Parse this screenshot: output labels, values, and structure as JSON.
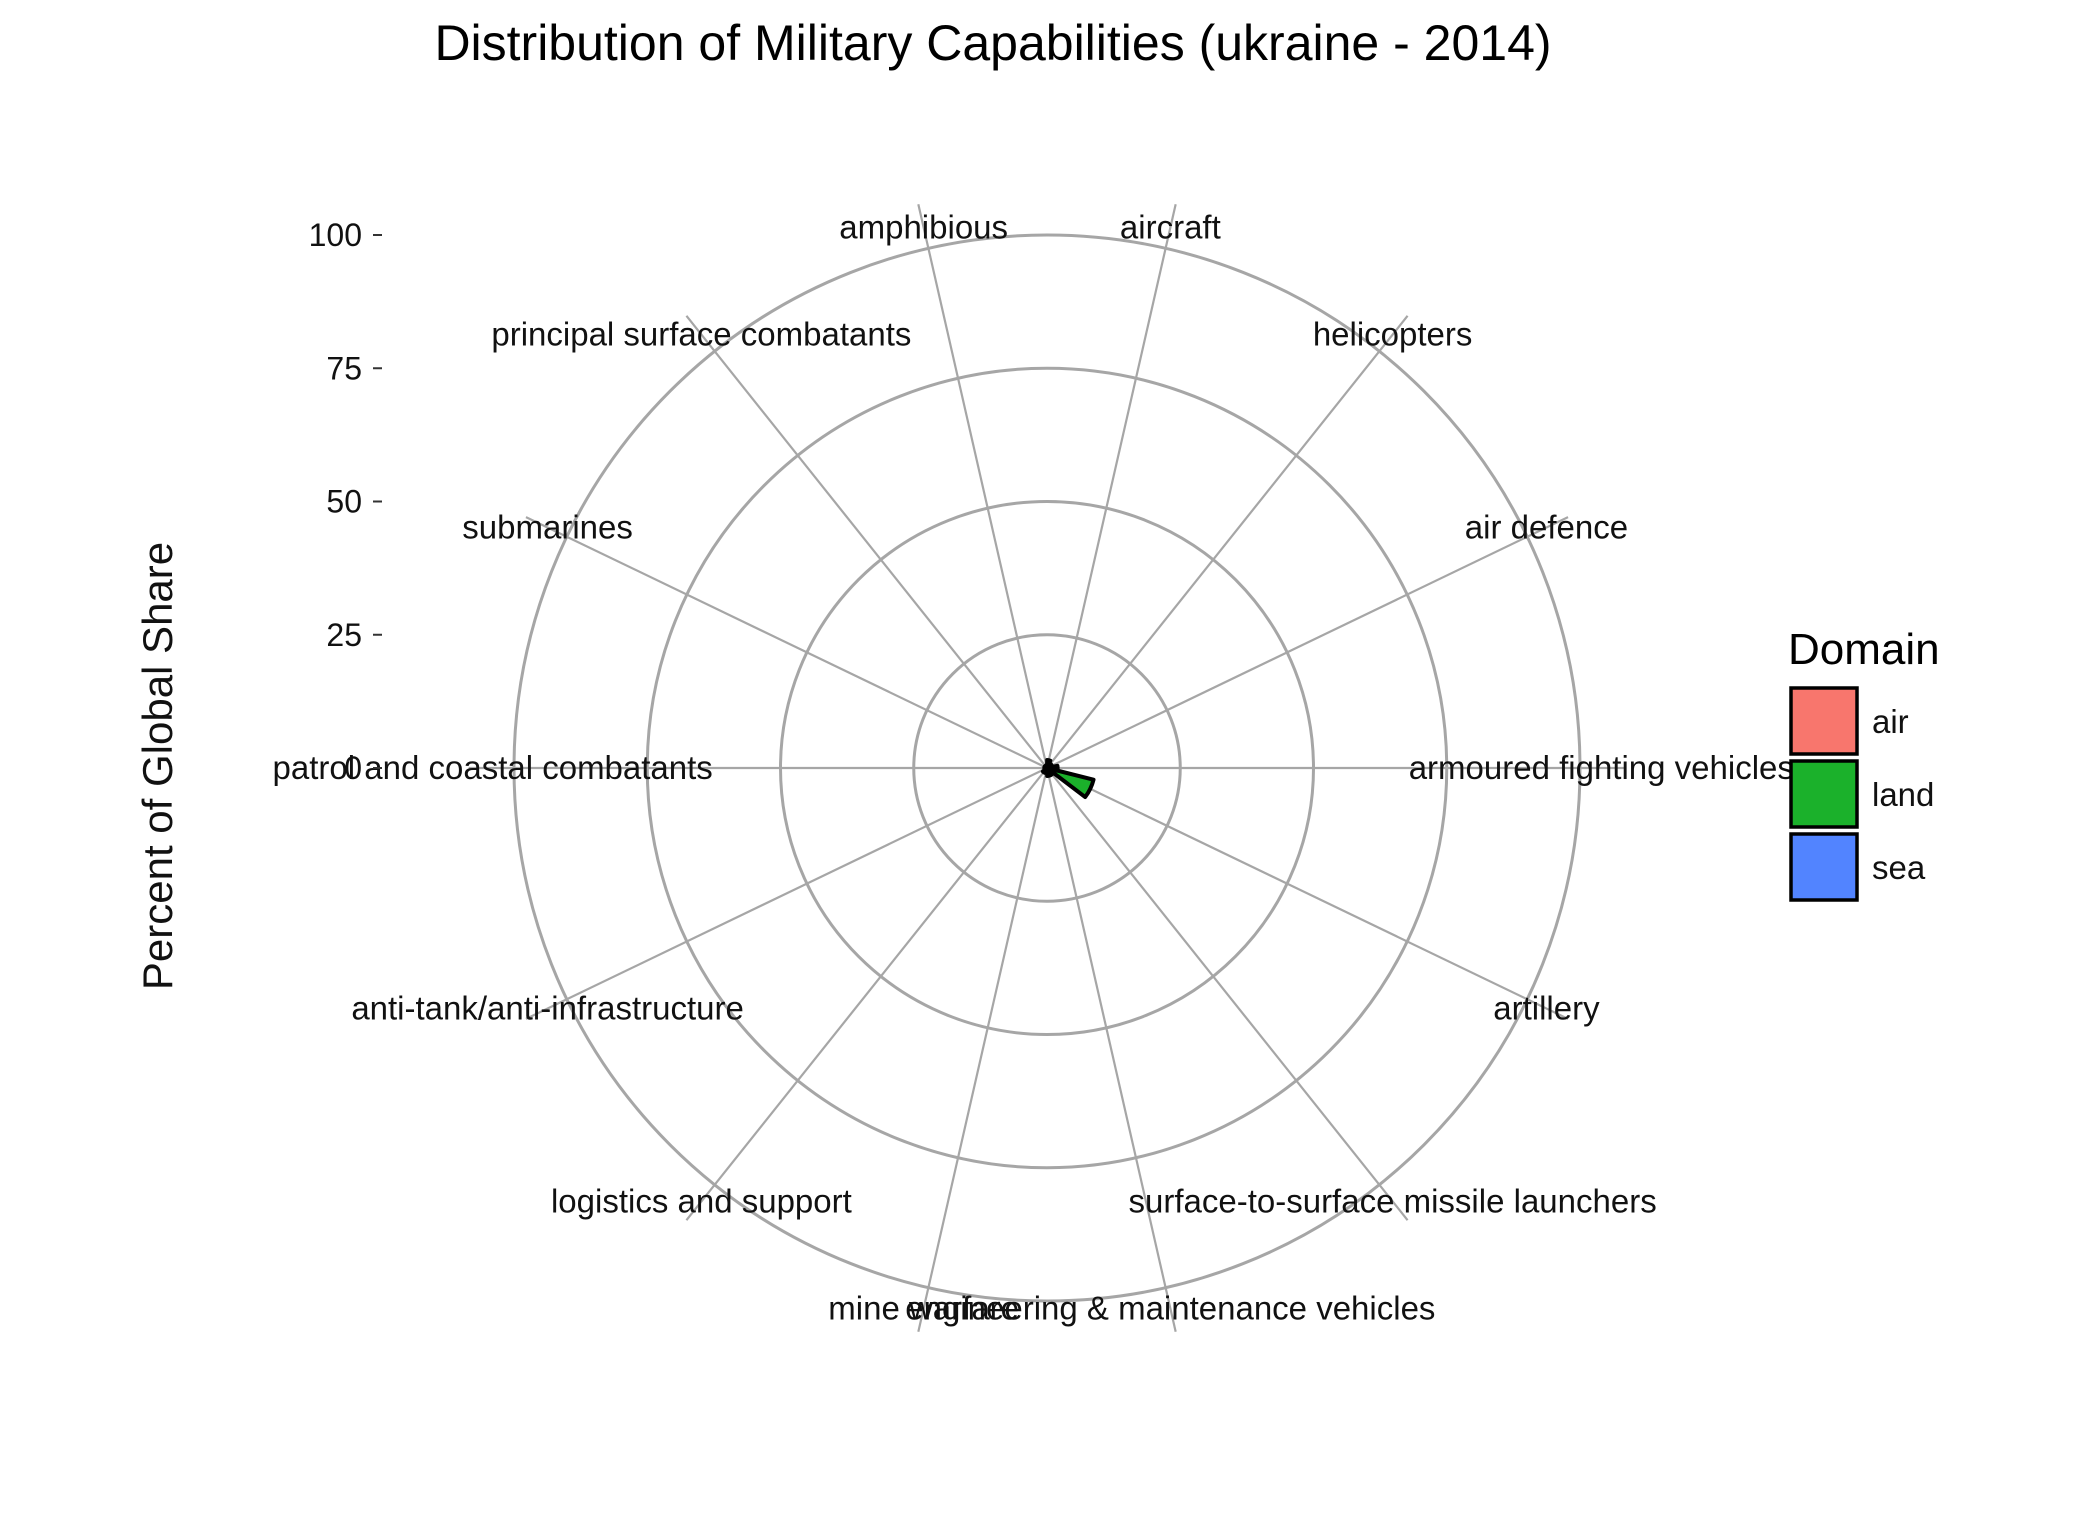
{
  "chart_data": {
    "type": "bar",
    "coord": "polar",
    "title": "Distribution of Military Capabilities (ukraine - 2014)",
    "xlabel": "",
    "ylabel": "Percent of Global Share",
    "ylim": [
      0,
      100
    ],
    "yticks": [
      "0",
      "25",
      "50",
      "75",
      "100"
    ],
    "grid": true,
    "legend": {
      "title": "Domain",
      "position": "right",
      "entries": [
        {
          "name": "air",
          "color": "#F8766D"
        },
        {
          "name": "land",
          "color": "#1BB12B"
        },
        {
          "name": "sea",
          "color": "#5284FF"
        }
      ]
    },
    "categories": [
      "aircraft",
      "helicopters",
      "air defence",
      "armoured fighting vehicles",
      "artillery",
      "surface-to-surface missile launchers",
      "engineering & maintenance vehicles",
      "mine warfare",
      "logistics and support",
      "anti-tank/anti-infrastructure",
      "patrol and coastal combatants",
      "submarines",
      "principal surface combatants",
      "amphibious"
    ],
    "domains": [
      "air",
      "air",
      "air",
      "land",
      "land",
      "land",
      "land",
      "sea",
      "land",
      "land",
      "sea",
      "sea",
      "sea",
      "sea"
    ],
    "values": [
      1.5,
      1.0,
      1.0,
      2.0,
      9.0,
      1.5,
      1.5,
      0.5,
      1.0,
      0.5,
      0.5,
      0.5,
      0.5,
      0.5
    ]
  }
}
